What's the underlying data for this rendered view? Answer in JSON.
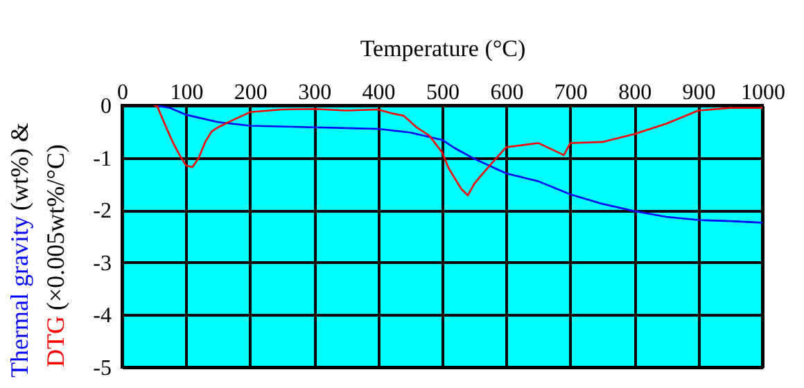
{
  "chart_data": {
    "type": "line",
    "xlabel": "Temperature (°C)",
    "ylabel": "(wt%) &\n(×0.005wt%/°C)",
    "xlim": [
      0,
      1000
    ],
    "xticks": [
      0,
      100,
      200,
      300,
      400,
      500,
      600,
      700,
      800,
      900,
      1000
    ],
    "ylim": [
      -5,
      0
    ],
    "yticks": [
      0,
      -1,
      -2,
      -3,
      -4,
      -5
    ],
    "grid": true,
    "marker": "none",
    "line_style": "solid",
    "series": [
      {
        "name": "Thermal gravity",
        "color": "#0000ff",
        "x": [
          50,
          75,
          100,
          150,
          200,
          300,
          400,
          450,
          500,
          520,
          550,
          600,
          650,
          700,
          750,
          800,
          850,
          900,
          950,
          1000
        ],
        "values": [
          0,
          -0.05,
          -0.18,
          -0.32,
          -0.39,
          -0.42,
          -0.45,
          -0.52,
          -0.66,
          -0.82,
          -1.02,
          -1.3,
          -1.45,
          -1.7,
          -1.88,
          -2.02,
          -2.13,
          -2.19,
          -2.21,
          -2.24
        ]
      },
      {
        "name": "DTG",
        "color": "#ff0000",
        "x": [
          50,
          55,
          70,
          80,
          90,
          100,
          110,
          120,
          130,
          140,
          150,
          170,
          200,
          250,
          300,
          350,
          400,
          420,
          440,
          460,
          480,
          500,
          510,
          530,
          540,
          550,
          560,
          580,
          600,
          650,
          690,
          700,
          750,
          800,
          850,
          900,
          950,
          1000
        ],
        "values": [
          0,
          -0.02,
          -0.45,
          -0.72,
          -0.95,
          -1.15,
          -1.18,
          -1.0,
          -0.7,
          -0.5,
          -0.42,
          -0.3,
          -0.13,
          -0.08,
          -0.07,
          -0.1,
          -0.08,
          -0.15,
          -0.2,
          -0.42,
          -0.58,
          -0.9,
          -1.2,
          -1.6,
          -1.72,
          -1.5,
          -1.35,
          -1.07,
          -0.8,
          -0.72,
          -0.95,
          -0.72,
          -0.7,
          -0.55,
          -0.35,
          -0.1,
          -0.05,
          -0.05
        ]
      }
    ]
  }
}
